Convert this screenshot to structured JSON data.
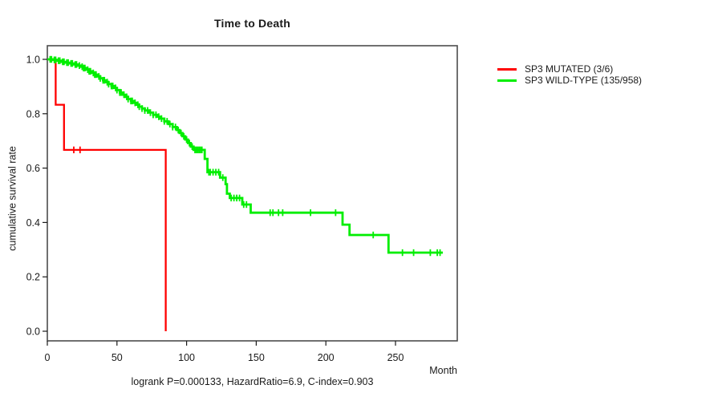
{
  "header": {
    "title": "Time to Death"
  },
  "chart_data": {
    "type": "line",
    "subtype": "kaplan-meier-step-survival",
    "title": "Time to Death",
    "xlabel": "Month",
    "ylabel": "cumulative survival rate",
    "caption": "logrank P=0.000133, HazardRatio=6.9, C-index=0.903",
    "xlim": [
      0,
      295
    ],
    "ylim": [
      0.0,
      1.0
    ],
    "x_ticks": [
      0,
      50,
      100,
      150,
      200,
      250
    ],
    "y_ticks": [
      "0.0",
      "0.2",
      "0.4",
      "0.6",
      "0.8",
      "1.0"
    ],
    "grid": false,
    "legend_position": "right-outside",
    "series": [
      {
        "name": "SP3 MUTATED (3/6)",
        "color": "#ff0000",
        "points": [
          [
            0,
            1.0
          ],
          [
            6,
            0.833
          ],
          [
            12,
            0.667
          ],
          [
            85,
            0.0
          ]
        ],
        "censors": [
          19,
          23.5
        ]
      },
      {
        "name": "SP3 WILD-TYPE (135/958)",
        "color": "#00ee00",
        "points": [
          [
            0,
            1.0
          ],
          [
            4,
            0.998
          ],
          [
            7,
            0.995
          ],
          [
            10,
            0.991
          ],
          [
            13,
            0.988
          ],
          [
            16,
            0.985
          ],
          [
            19,
            0.981
          ],
          [
            22,
            0.977
          ],
          [
            24,
            0.973
          ],
          [
            26,
            0.968
          ],
          [
            28,
            0.962
          ],
          [
            30,
            0.956
          ],
          [
            32,
            0.95
          ],
          [
            34,
            0.944
          ],
          [
            36,
            0.937
          ],
          [
            38,
            0.93
          ],
          [
            40,
            0.923
          ],
          [
            42,
            0.916
          ],
          [
            44,
            0.909
          ],
          [
            46,
            0.902
          ],
          [
            48,
            0.895
          ],
          [
            50,
            0.887
          ],
          [
            52,
            0.878
          ],
          [
            54,
            0.87
          ],
          [
            56,
            0.862
          ],
          [
            58,
            0.854
          ],
          [
            60,
            0.847
          ],
          [
            62,
            0.84
          ],
          [
            64,
            0.833
          ],
          [
            66,
            0.826
          ],
          [
            68,
            0.819
          ],
          [
            70,
            0.812
          ],
          [
            73,
            0.804
          ],
          [
            76,
            0.796
          ],
          [
            79,
            0.789
          ],
          [
            81,
            0.782
          ],
          [
            84,
            0.772
          ],
          [
            87,
            0.762
          ],
          [
            90,
            0.751
          ],
          [
            93,
            0.74
          ],
          [
            95,
            0.729
          ],
          [
            97,
            0.717
          ],
          [
            99,
            0.705
          ],
          [
            101,
            0.692
          ],
          [
            103,
            0.679
          ],
          [
            105,
            0.667
          ],
          [
            113,
            0.634
          ],
          [
            115,
            0.585
          ],
          [
            124,
            0.565
          ],
          [
            128,
            0.541
          ],
          [
            129,
            0.506
          ],
          [
            131,
            0.49
          ],
          [
            140,
            0.466
          ],
          [
            146,
            0.436
          ],
          [
            212,
            0.392
          ],
          [
            217,
            0.354
          ],
          [
            245,
            0.289
          ],
          [
            284,
            0.289
          ]
        ],
        "censors": [
          2,
          3,
          5,
          6,
          8,
          9,
          11,
          12,
          14,
          15,
          17,
          18,
          20,
          21,
          23,
          25,
          26,
          27,
          29,
          30,
          31,
          33,
          34,
          35,
          37,
          38,
          40,
          41,
          43,
          44,
          46,
          47,
          49,
          50,
          52,
          53,
          55,
          57,
          58,
          60,
          61,
          63,
          65,
          66,
          68,
          70,
          72,
          74,
          76,
          78,
          80,
          82,
          84,
          86,
          88,
          90,
          92,
          94,
          96,
          98,
          100,
          102,
          104,
          106,
          107,
          108,
          109,
          110,
          111,
          116,
          117,
          119,
          121,
          123,
          126,
          132,
          134,
          136,
          138,
          141,
          143,
          160,
          162,
          166,
          169,
          189,
          207,
          234,
          255,
          263,
          275,
          280,
          282
        ]
      }
    ]
  }
}
